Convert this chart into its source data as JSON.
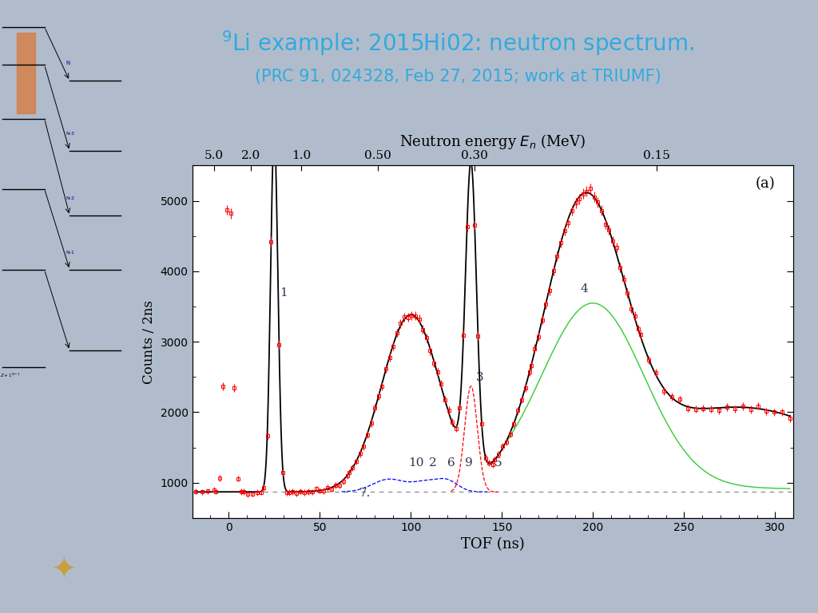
{
  "title_line1": "$^9$Li example: 2015Hi02: neutron spectrum.",
  "title_line2": "(PRC 91, 024328, Feb 27, 2015; work at TRIUMF)",
  "title_color": "#33aadd",
  "bg_color": "#b0bccc",
  "plot_area_bg": "#e8e8e4",
  "plot_bg": "#ffffff",
  "xlabel": "TOF (ns)",
  "ylabel": "Counts / 2ns",
  "top_xlabel": "Neutron energy $E_n$ (MeV)",
  "top_xtick_labels": [
    "5.0",
    "2.0",
    "1.0",
    "0.50",
    "0.30",
    "0.15"
  ],
  "top_xtick_positions": [
    -8,
    12,
    40,
    82,
    135,
    235
  ],
  "xlim": [
    -20,
    310
  ],
  "ylim": [
    500,
    5500
  ],
  "yticks": [
    1000,
    2000,
    3000,
    4000,
    5000
  ],
  "panel_label": "(a)",
  "dashed_hline": 870,
  "annotation_color": "#222244"
}
